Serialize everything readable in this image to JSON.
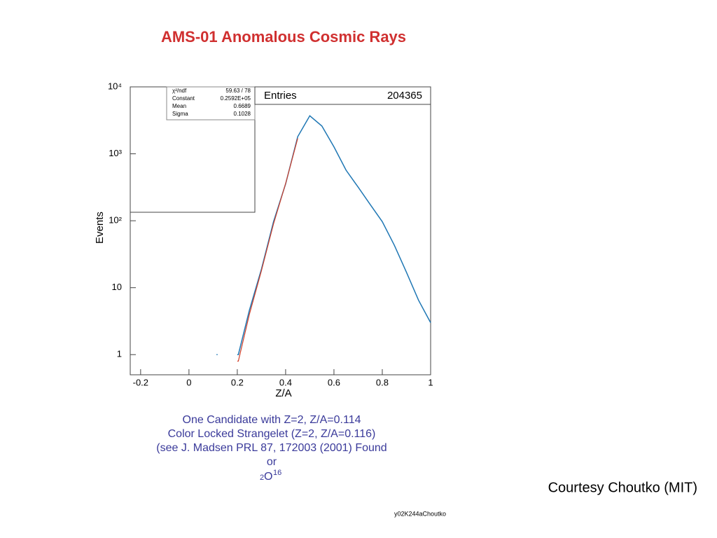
{
  "chart_data": {
    "type": "line",
    "title": "AMS-01 Anomalous Cosmic Rays",
    "x_label": "Z/A",
    "y_label": "Events",
    "log_y": true,
    "xlim": [
      -0.243,
      1
    ],
    "xticks": [
      -0.2,
      0,
      0.2,
      0.4,
      0.6,
      0.8,
      1
    ],
    "ylim": [
      0.5,
      10000
    ],
    "yticks": [
      1,
      10,
      {
        "value": 100,
        "label": "10²"
      },
      {
        "value": 1000,
        "label": "10³"
      },
      {
        "value": 10000,
        "label": "10⁴"
      }
    ],
    "x": [
      0.114,
      0.15,
      0.2,
      0.25,
      0.3,
      0.35,
      0.4,
      0.45,
      0.5,
      0.55,
      0.6,
      0.65,
      0.7,
      0.75,
      0.8,
      0.85,
      0.9,
      0.95,
      1.0
    ],
    "series": [
      {
        "color": "#1f77b4",
        "values": [
          1,
          null,
          1,
          4.6,
          19,
          97,
          355,
          1800,
          3700,
          2600,
          1270,
          570,
          318,
          175,
          97,
          43,
          17,
          6.5,
          3
        ]
      },
      {
        "color": "#d0402a",
        "values": [
          null,
          null,
          0.8,
          4,
          18,
          90,
          360,
          1700,
          null,
          null,
          null,
          null,
          null,
          null,
          null,
          null,
          null,
          null,
          null
        ]
      }
    ],
    "stats": {
      "entries_label": "Entries",
      "entries": 204365,
      "rows": [
        [
          "χ²/ndf",
          "59.63  /  78"
        ],
        [
          "Constant",
          "0.2592E+05"
        ],
        [
          "Mean",
          "0.6689"
        ],
        [
          "Sigma",
          "0.1028"
        ]
      ]
    },
    "annotations": [
      "One Candidate with Z=2, Z/A=0.114",
      "Color Locked Strangelet (Z=2, Z/A=0.116)",
      "(see J. Madsen PRL 87, 172003 (2001) Found",
      "or"
    ],
    "formula": {
      "prefix": "2",
      "element": "O",
      "mass": "16"
    },
    "credit": "Courtesy Choutko (MIT)",
    "footnote": "y02K244aChoutko"
  }
}
